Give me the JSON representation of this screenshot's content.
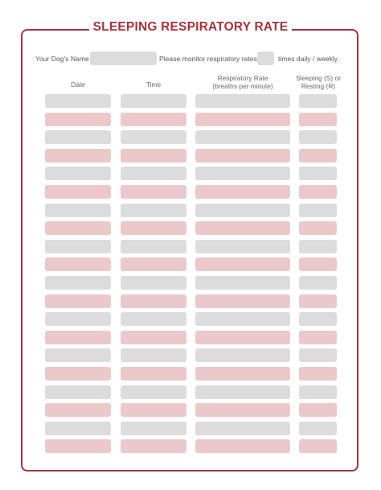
{
  "title": "SLEEPING RESPIRATORY RATE",
  "form": {
    "dog_name_label": "Your Dog's Name",
    "dog_name_value": "",
    "monitor_label": "Please monitor respiratory rates",
    "monitor_value": "",
    "frequency_label": "times daily / weekly."
  },
  "columns": [
    {
      "line1": "Date",
      "line2": ""
    },
    {
      "line1": "Time",
      "line2": ""
    },
    {
      "line1": "Respiratory Rate",
      "line2": "(breaths per minute)"
    },
    {
      "line1": "Sleeping (S) or",
      "line2": "Resting (R)"
    }
  ],
  "row_count": 20,
  "colors": {
    "accent": "#a0353c",
    "field_grey": "#dcdcdc",
    "field_pink": "#ebc9cb"
  }
}
